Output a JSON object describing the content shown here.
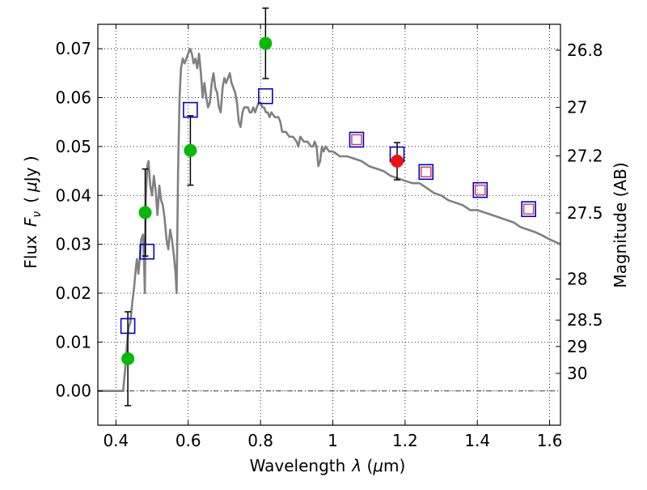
{
  "chart_data": {
    "type": "scatter",
    "xlabel_text": "Wavelength",
    "xlabel_symbol": "λ",
    "xlabel_unit_open": " (",
    "xlabel_unit_mu": "μ",
    "xlabel_unit_close": "m)",
    "ylabel_text": "Flux",
    "ylabel_symbol_F": "F",
    "ylabel_symbol_nu": "ν",
    "ylabel_unit_open": "(",
    "ylabel_unit_mu": "μ",
    "ylabel_unit_close": "Jy )",
    "y2label": "Magnitude (AB)",
    "xlim": [
      0.35,
      1.63
    ],
    "ylim": [
      -0.007,
      0.075
    ],
    "grid": true,
    "x_ticks": [
      0.4,
      0.6,
      0.8,
      1.0,
      1.2,
      1.4,
      1.6
    ],
    "x_tick_labels": [
      "0.4",
      "0.6",
      "0.8",
      "1",
      "1.2",
      "1.4",
      "1.6"
    ],
    "y_ticks": [
      0.0,
      0.01,
      0.02,
      0.03,
      0.04,
      0.05,
      0.06,
      0.07
    ],
    "y_tick_labels": [
      "0.00",
      "0.01",
      "0.02",
      "0.03",
      "0.04",
      "0.05",
      "0.06",
      "0.07"
    ],
    "y2_ticks": [
      {
        "label": "26.8",
        "flux": 0.0697
      },
      {
        "label": "27",
        "flux": 0.058
      },
      {
        "label": "27.2",
        "flux": 0.0481
      },
      {
        "label": "27.5",
        "flux": 0.0364
      },
      {
        "label": "28",
        "flux": 0.0229
      },
      {
        "label": "28.5",
        "flux": 0.0145
      },
      {
        "label": "29",
        "flux": 0.0091
      },
      {
        "label": "30",
        "flux": 0.0036
      }
    ],
    "colors": {
      "sed_line": "#808080",
      "detection_green": "#00bb00",
      "detection_red": "#ee1111",
      "model_square": "#0000cc",
      "red_square": "#dd3355"
    },
    "series": [
      {
        "role": "model_sed_line",
        "points": [
          [
            0.35,
            0.0
          ],
          [
            0.42,
            0.0
          ],
          [
            0.425,
            0.004
          ],
          [
            0.43,
            0.009
          ],
          [
            0.435,
            0.013
          ],
          [
            0.44,
            0.014
          ],
          [
            0.445,
            0.018
          ],
          [
            0.45,
            0.021
          ],
          [
            0.455,
            0.025
          ],
          [
            0.458,
            0.027
          ],
          [
            0.462,
            0.024
          ],
          [
            0.466,
            0.027
          ],
          [
            0.47,
            0.031
          ],
          [
            0.475,
            0.032
          ],
          [
            0.478,
            0.026
          ],
          [
            0.48,
            0.02
          ],
          [
            0.483,
            0.04
          ],
          [
            0.487,
            0.046
          ],
          [
            0.49,
            0.047
          ],
          [
            0.495,
            0.042
          ],
          [
            0.5,
            0.04
          ],
          [
            0.505,
            0.044
          ],
          [
            0.51,
            0.041
          ],
          [
            0.515,
            0.036
          ],
          [
            0.52,
            0.042
          ],
          [
            0.525,
            0.039
          ],
          [
            0.53,
            0.038
          ],
          [
            0.535,
            0.035
          ],
          [
            0.54,
            0.031
          ],
          [
            0.545,
            0.029
          ],
          [
            0.55,
            0.033
          ],
          [
            0.555,
            0.031
          ],
          [
            0.56,
            0.028
          ],
          [
            0.565,
            0.024
          ],
          [
            0.568,
            0.02
          ],
          [
            0.572,
            0.045
          ],
          [
            0.576,
            0.06
          ],
          [
            0.58,
            0.066
          ],
          [
            0.585,
            0.068
          ],
          [
            0.59,
            0.067
          ],
          [
            0.595,
            0.068
          ],
          [
            0.6,
            0.069
          ],
          [
            0.605,
            0.07
          ],
          [
            0.61,
            0.069
          ],
          [
            0.615,
            0.067
          ],
          [
            0.62,
            0.068
          ],
          [
            0.625,
            0.066
          ],
          [
            0.63,
            0.069
          ],
          [
            0.635,
            0.065
          ],
          [
            0.64,
            0.06
          ],
          [
            0.645,
            0.063
          ],
          [
            0.65,
            0.06
          ],
          [
            0.655,
            0.058
          ],
          [
            0.66,
            0.059
          ],
          [
            0.665,
            0.063
          ],
          [
            0.67,
            0.065
          ],
          [
            0.675,
            0.062
          ],
          [
            0.68,
            0.061
          ],
          [
            0.685,
            0.058
          ],
          [
            0.69,
            0.057
          ],
          [
            0.695,
            0.062
          ],
          [
            0.7,
            0.064
          ],
          [
            0.705,
            0.063
          ],
          [
            0.71,
            0.064
          ],
          [
            0.715,
            0.065
          ],
          [
            0.72,
            0.063
          ],
          [
            0.725,
            0.062
          ],
          [
            0.73,
            0.061
          ],
          [
            0.735,
            0.059
          ],
          [
            0.74,
            0.055
          ],
          [
            0.745,
            0.054
          ],
          [
            0.75,
            0.057
          ],
          [
            0.755,
            0.058
          ],
          [
            0.76,
            0.058
          ],
          [
            0.765,
            0.058
          ],
          [
            0.77,
            0.057
          ],
          [
            0.775,
            0.057
          ],
          [
            0.78,
            0.058
          ],
          [
            0.785,
            0.057
          ],
          [
            0.79,
            0.058
          ],
          [
            0.795,
            0.059
          ],
          [
            0.8,
            0.059
          ],
          [
            0.805,
            0.058
          ],
          [
            0.81,
            0.058
          ],
          [
            0.815,
            0.057
          ],
          [
            0.82,
            0.057
          ],
          [
            0.825,
            0.056
          ],
          [
            0.83,
            0.057
          ],
          [
            0.84,
            0.056
          ],
          [
            0.85,
            0.056
          ],
          [
            0.855,
            0.055
          ],
          [
            0.86,
            0.053
          ],
          [
            0.87,
            0.053
          ],
          [
            0.88,
            0.052
          ],
          [
            0.89,
            0.052
          ],
          [
            0.9,
            0.051
          ],
          [
            0.905,
            0.05
          ],
          [
            0.91,
            0.052
          ],
          [
            0.92,
            0.051
          ],
          [
            0.93,
            0.051
          ],
          [
            0.94,
            0.05
          ],
          [
            0.945,
            0.05
          ],
          [
            0.95,
            0.051
          ],
          [
            0.955,
            0.05
          ],
          [
            0.96,
            0.046
          ],
          [
            0.965,
            0.047
          ],
          [
            0.97,
            0.05
          ],
          [
            0.975,
            0.049
          ],
          [
            0.98,
            0.05
          ],
          [
            0.99,
            0.049
          ],
          [
            1.0,
            0.049
          ],
          [
            1.02,
            0.048
          ],
          [
            1.04,
            0.048
          ],
          [
            1.06,
            0.0475
          ],
          [
            1.08,
            0.047
          ],
          [
            1.1,
            0.046
          ],
          [
            1.12,
            0.0455
          ],
          [
            1.14,
            0.045
          ],
          [
            1.16,
            0.044
          ],
          [
            1.18,
            0.0435
          ],
          [
            1.2,
            0.043
          ],
          [
            1.22,
            0.0425
          ],
          [
            1.24,
            0.0425
          ],
          [
            1.26,
            0.0415
          ],
          [
            1.28,
            0.0405
          ],
          [
            1.3,
            0.04
          ],
          [
            1.32,
            0.039
          ],
          [
            1.34,
            0.0385
          ],
          [
            1.36,
            0.038
          ],
          [
            1.38,
            0.037
          ],
          [
            1.4,
            0.037
          ],
          [
            1.42,
            0.0365
          ],
          [
            1.44,
            0.036
          ],
          [
            1.46,
            0.0355
          ],
          [
            1.48,
            0.035
          ],
          [
            1.5,
            0.0345
          ],
          [
            1.52,
            0.0335
          ],
          [
            1.54,
            0.033
          ],
          [
            1.56,
            0.0325
          ],
          [
            1.58,
            0.0318
          ],
          [
            1.6,
            0.031
          ],
          [
            1.63,
            0.03
          ]
        ]
      },
      {
        "role": "measurements_green",
        "points": [
          {
            "x": 0.433,
            "y": 0.0066,
            "yerr": 0.0096
          },
          {
            "x": 0.481,
            "y": 0.0365,
            "yerr": 0.0089
          },
          {
            "x": 0.606,
            "y": 0.0492,
            "yerr": 0.0071
          },
          {
            "x": 0.814,
            "y": 0.0711,
            "yerr": 0.0072
          }
        ]
      },
      {
        "role": "measurement_red",
        "points": [
          {
            "x": 1.178,
            "y": 0.047,
            "yerr": 0.0038
          }
        ]
      },
      {
        "role": "model_squares",
        "points": [
          {
            "x": 0.433,
            "y": 0.0133
          },
          {
            "x": 0.486,
            "y": 0.0285
          },
          {
            "x": 0.606,
            "y": 0.0575
          },
          {
            "x": 0.814,
            "y": 0.0603
          },
          {
            "x": 1.066,
            "y": 0.0514
          },
          {
            "x": 1.178,
            "y": 0.0484
          },
          {
            "x": 1.258,
            "y": 0.0448
          },
          {
            "x": 1.408,
            "y": 0.0411
          },
          {
            "x": 1.542,
            "y": 0.0372
          }
        ]
      },
      {
        "role": "model_squares_red",
        "points": [
          {
            "x": 1.066,
            "y": 0.0514
          },
          {
            "x": 1.258,
            "y": 0.0448
          },
          {
            "x": 1.408,
            "y": 0.0411
          },
          {
            "x": 1.542,
            "y": 0.0372
          }
        ]
      }
    ]
  }
}
